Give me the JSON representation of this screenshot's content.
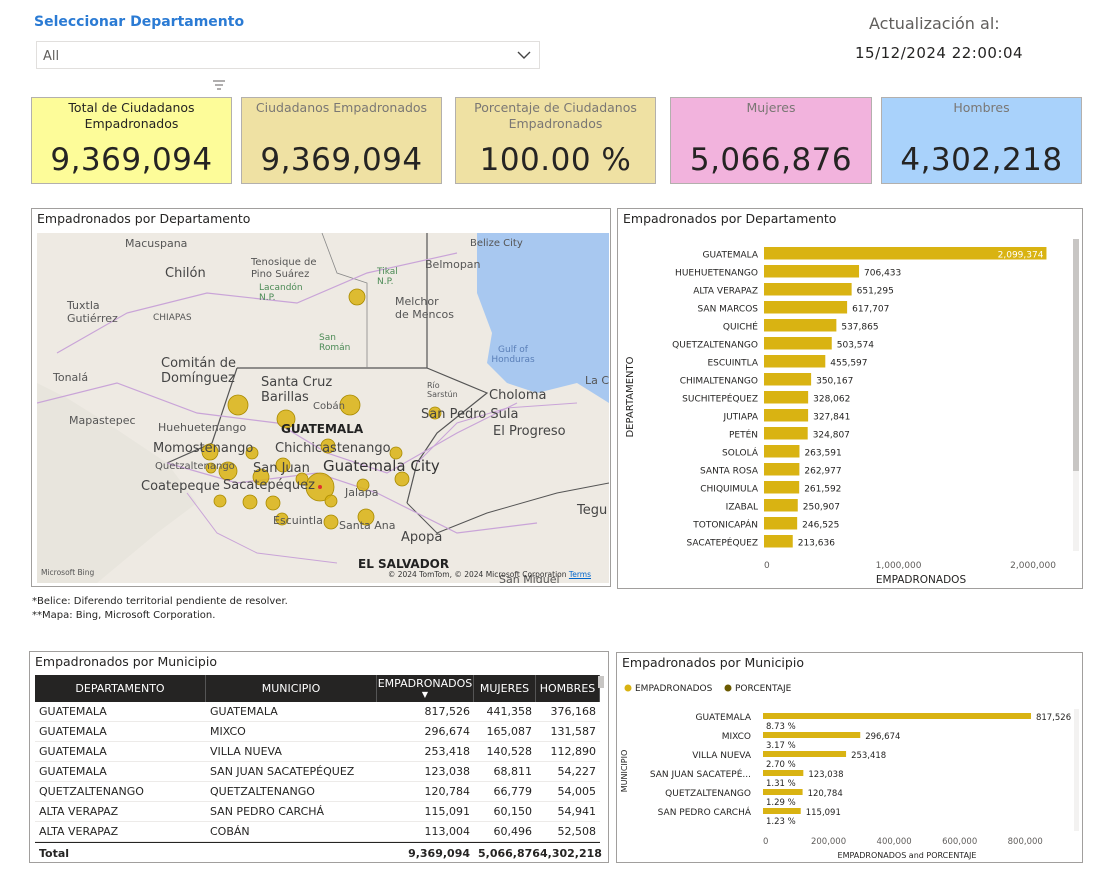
{
  "header": {
    "select_label": "Seleccionar Departamento",
    "dropdown_value": "All",
    "update_label": "Actualización al:",
    "update_value": "15/12/2024 22:00:04"
  },
  "kpis": [
    {
      "label": "Total de Ciudadanos Empadronados",
      "value": "9,369,094"
    },
    {
      "label": "Ciudadanos Empadronados",
      "value": "9,369,094"
    },
    {
      "label": "Porcentaje de Ciudadanos Empadronados",
      "value": "100.00 %"
    },
    {
      "label": "Mujeres",
      "value": "5,066,876"
    },
    {
      "label": "Hombres",
      "value": "4,302,218"
    }
  ],
  "map": {
    "title": "Empadronados por Departamento",
    "labels": [
      "Macuspana",
      "Chilón",
      "Tuxtla Gutiérrez",
      "CHIAPAS",
      "Comitán de Domínguez",
      "Tonalá",
      "Mapastepec",
      "Huehuetenango",
      "Momostenango",
      "Quetzaltenango",
      "Coatepeque",
      "Tenosique de Pino Suárez",
      "Lacandón N.P.",
      "Tikal N.P.",
      "Belmopan",
      "Belize City",
      "Melchor de Mencos",
      "San Román",
      "Gulf of Honduras",
      "Santa Cruz Barillas",
      "Cobán",
      "Río Sarstún",
      "San Pedro Sula",
      "Choloma",
      "La Ce",
      "El Progreso",
      "GUATEMALA",
      "Chichicastenango",
      "San Juan",
      "Sacatepéquez",
      "Guatemala City",
      "Jalapa",
      "Escuintla",
      "Santa Ana",
      "Apopa",
      "EL SALVADOR",
      "San Miguel",
      "Tegu"
    ],
    "bing": "Microsoft Bing",
    "attribution": "© 2024 TomTom, © 2024 Microsoft Corporation",
    "terms": "Terms",
    "color_bubble": "#d9b312"
  },
  "notes": [
    "*Belice: Diferendo territorial pendiente de resolver.",
    "**Mapa: Bing, Microsoft Corporation."
  ],
  "chart_data": [
    {
      "type": "bar",
      "title": "Empadronados por Departamento",
      "xlabel": "EMPADRONADOS",
      "ylabel": "DEPARTAMENTO",
      "orientation": "horizontal",
      "categories": [
        "GUATEMALA",
        "HUEHUETENANGO",
        "ALTA VERAPAZ",
        "SAN MARCOS",
        "QUICHÉ",
        "QUETZALTENANGO",
        "ESCUINTLA",
        "CHIMALTENANGO",
        "SUCHITEPÉQUEZ",
        "JUTIAPA",
        "PETÉN",
        "SOLOLÁ",
        "SANTA ROSA",
        "CHIQUIMULA",
        "IZABAL",
        "TOTONICAPÁN",
        "SACATEPÉQUEZ"
      ],
      "values": [
        2099374,
        706433,
        651295,
        617707,
        537865,
        503574,
        455597,
        350167,
        328062,
        327841,
        324807,
        263591,
        262977,
        261592,
        250907,
        246525,
        213636
      ],
      "value_labels": [
        "2,099,374",
        "706,433",
        "651,295",
        "617,707",
        "537,865",
        "503,574",
        "455,597",
        "350,167",
        "328,062",
        "327,841",
        "324,807",
        "263,591",
        "262,977",
        "261,592",
        "250,907",
        "246,525",
        "213,636"
      ],
      "xticks": [
        "0",
        "1,000,000",
        "2,000,000"
      ],
      "xlim": [
        0,
        2200000
      ],
      "color": "#d9b312"
    },
    {
      "type": "bar",
      "title": "Empadronados por Municipio",
      "xlabel": "EMPADRONADOS and PORCENTAJE",
      "ylabel": "MUNICIPIO",
      "orientation": "horizontal",
      "legend": [
        "EMPADRONADOS",
        "PORCENTAJE"
      ],
      "legend_colors": [
        "#d9b312",
        "#6b5a00"
      ],
      "categories": [
        "GUATEMALA",
        "MIXCO",
        "VILLA NUEVA",
        "SAN JUAN SACATEPÉ...",
        "QUETZALTENANGO",
        "SAN PEDRO CARCHÁ"
      ],
      "values": [
        817526,
        296674,
        253418,
        123038,
        120784,
        115091
      ],
      "value_labels": [
        "817,526",
        "296,674",
        "253,418",
        "123,038",
        "120,784",
        "115,091"
      ],
      "percent_labels": [
        "8.73 %",
        "3.17 %",
        "2.70 %",
        "1.31 %",
        "1.29 %",
        "1.23 %"
      ],
      "xticks": [
        "0",
        "200,000",
        "400,000",
        "600,000",
        "800,000"
      ],
      "xlim": [
        0,
        900000
      ]
    }
  ],
  "table": {
    "title": "Empadronados por Municipio",
    "columns": [
      "DEPARTAMENTO",
      "MUNICIPIO",
      "EMPADRONADOS",
      "MUJERES",
      "HOMBRES"
    ],
    "rows": [
      [
        "GUATEMALA",
        "GUATEMALA",
        "817,526",
        "441,358",
        "376,168"
      ],
      [
        "GUATEMALA",
        "MIXCO",
        "296,674",
        "165,087",
        "131,587"
      ],
      [
        "GUATEMALA",
        "VILLA NUEVA",
        "253,418",
        "140,528",
        "112,890"
      ],
      [
        "GUATEMALA",
        "SAN JUAN SACATEPÉQUEZ",
        "123,038",
        "68,811",
        "54,227"
      ],
      [
        "QUETZALTENANGO",
        "QUETZALTENANGO",
        "120,784",
        "66,779",
        "54,005"
      ],
      [
        "ALTA VERAPAZ",
        "SAN PEDRO CARCHÁ",
        "115,091",
        "60,150",
        "54,941"
      ],
      [
        "ALTA VERAPAZ",
        "COBÁN",
        "113,004",
        "60,496",
        "52,508"
      ]
    ],
    "total": [
      "Total",
      "",
      "9,369,094",
      "5,066,876",
      "4,302,218"
    ]
  }
}
